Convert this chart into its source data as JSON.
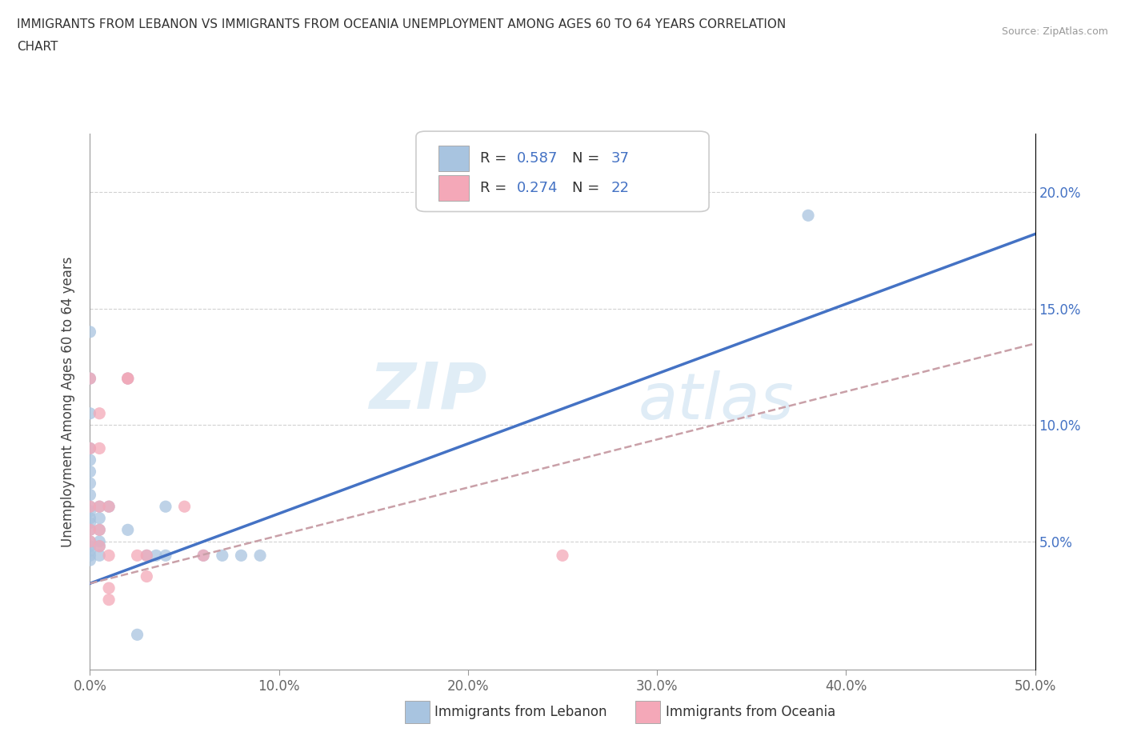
{
  "title_line1": "IMMIGRANTS FROM LEBANON VS IMMIGRANTS FROM OCEANIA UNEMPLOYMENT AMONG AGES 60 TO 64 YEARS CORRELATION",
  "title_line2": "CHART",
  "source": "Source: ZipAtlas.com",
  "xlabel_ticks": [
    "0.0%",
    "10.0%",
    "20.0%",
    "30.0%",
    "40.0%",
    "50.0%"
  ],
  "ylabel_ticks": [
    "5.0%",
    "10.0%",
    "15.0%",
    "20.0%"
  ],
  "xlim": [
    0,
    0.5
  ],
  "ylim": [
    -0.005,
    0.225
  ],
  "lebanon_color": "#a8c4e0",
  "oceania_color": "#f4a8b8",
  "lebanon_line_color": "#4472c4",
  "oceania_line_color": "#c9a0a8",
  "R_lebanon": 0.587,
  "N_lebanon": 37,
  "R_oceania": 0.274,
  "N_oceania": 22,
  "watermark_zip": "ZIP",
  "watermark_atlas": "atlas",
  "lebanon_points": [
    [
      0.0,
      0.14
    ],
    [
      0.0,
      0.12
    ],
    [
      0.0,
      0.105
    ],
    [
      0.0,
      0.09
    ],
    [
      0.0,
      0.085
    ],
    [
      0.0,
      0.08
    ],
    [
      0.0,
      0.075
    ],
    [
      0.0,
      0.07
    ],
    [
      0.0,
      0.065
    ],
    [
      0.0,
      0.063
    ],
    [
      0.0,
      0.06
    ],
    [
      0.0,
      0.058
    ],
    [
      0.0,
      0.055
    ],
    [
      0.0,
      0.05
    ],
    [
      0.0,
      0.048
    ],
    [
      0.0,
      0.046
    ],
    [
      0.0,
      0.044
    ],
    [
      0.0,
      0.042
    ],
    [
      0.005,
      0.065
    ],
    [
      0.005,
      0.06
    ],
    [
      0.005,
      0.055
    ],
    [
      0.005,
      0.05
    ],
    [
      0.005,
      0.048
    ],
    [
      0.005,
      0.044
    ],
    [
      0.01,
      0.065
    ],
    [
      0.02,
      0.12
    ],
    [
      0.02,
      0.055
    ],
    [
      0.03,
      0.044
    ],
    [
      0.035,
      0.044
    ],
    [
      0.04,
      0.065
    ],
    [
      0.04,
      0.044
    ],
    [
      0.06,
      0.044
    ],
    [
      0.07,
      0.044
    ],
    [
      0.08,
      0.044
    ],
    [
      0.09,
      0.044
    ],
    [
      0.38,
      0.19
    ],
    [
      0.025,
      0.01
    ]
  ],
  "oceania_points": [
    [
      0.0,
      0.12
    ],
    [
      0.0,
      0.09
    ],
    [
      0.0,
      0.065
    ],
    [
      0.0,
      0.055
    ],
    [
      0.0,
      0.05
    ],
    [
      0.005,
      0.105
    ],
    [
      0.005,
      0.09
    ],
    [
      0.005,
      0.065
    ],
    [
      0.005,
      0.055
    ],
    [
      0.005,
      0.048
    ],
    [
      0.01,
      0.065
    ],
    [
      0.01,
      0.044
    ],
    [
      0.01,
      0.03
    ],
    [
      0.01,
      0.025
    ],
    [
      0.02,
      0.12
    ],
    [
      0.02,
      0.12
    ],
    [
      0.025,
      0.044
    ],
    [
      0.03,
      0.044
    ],
    [
      0.03,
      0.035
    ],
    [
      0.05,
      0.065
    ],
    [
      0.06,
      0.044
    ],
    [
      0.25,
      0.044
    ]
  ],
  "lebanon_trendline_x": [
    0.0,
    0.5
  ],
  "lebanon_trendline_y": [
    0.032,
    0.182
  ],
  "oceania_trendline_x": [
    0.0,
    0.5
  ],
  "oceania_trendline_y": [
    0.032,
    0.135
  ]
}
